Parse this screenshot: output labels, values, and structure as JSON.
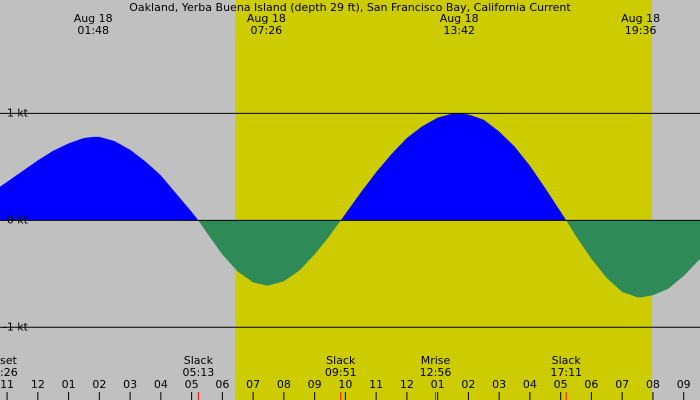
{
  "chart_data": {
    "type": "area",
    "title": "Oakland, Yerba Buena Island (depth 29 ft), San Francisco Bay, California Current",
    "x": [
      -1.25,
      -1,
      -0.5,
      0,
      0.5,
      1,
      1.5,
      1.8,
      2,
      2.5,
      3,
      3.5,
      4,
      4.5,
      5,
      5.22,
      5.5,
      6,
      6.5,
      7,
      7.43,
      7.5,
      8,
      8.5,
      9,
      9.5,
      9.85,
      10,
      10.5,
      11,
      11.5,
      12,
      12.5,
      13,
      13.5,
      13.7,
      14,
      14.5,
      15,
      15.5,
      16,
      16.5,
      17,
      17.18,
      17.5,
      18,
      18.5,
      19,
      19.5,
      19.6,
      20,
      20.5,
      21,
      21.5,
      21.53
    ],
    "values": [
      0.31,
      0.36,
      0.46,
      0.56,
      0.65,
      0.72,
      0.77,
      0.78,
      0.78,
      0.74,
      0.66,
      0.55,
      0.42,
      0.25,
      0.08,
      0,
      -0.12,
      -0.32,
      -0.48,
      -0.58,
      -0.61,
      -0.61,
      -0.57,
      -0.47,
      -0.32,
      -0.14,
      0,
      0.06,
      0.26,
      0.45,
      0.62,
      0.77,
      0.88,
      0.96,
      1.0,
      1.0,
      0.99,
      0.94,
      0.83,
      0.69,
      0.51,
      0.3,
      0.08,
      0,
      -0.15,
      -0.36,
      -0.54,
      -0.67,
      -0.72,
      -0.72,
      -0.7,
      -0.64,
      -0.52,
      -0.37,
      -0.36
    ],
    "positive_color": "#0000ff",
    "negative_color": "#2e8b57",
    "background_color": "#c0c0c0",
    "daylight_color": "#cccc00",
    "daylight": [
      6.43,
      19.97
    ],
    "xlim": [
      -1.23,
      21.53
    ],
    "ylim": [
      -1.68,
      2.06
    ],
    "xticks": [
      {
        "value": -1,
        "label": "11"
      },
      {
        "value": 0,
        "label": "12"
      },
      {
        "value": 1,
        "label": "01"
      },
      {
        "value": 2,
        "label": "02"
      },
      {
        "value": 3,
        "label": "03"
      },
      {
        "value": 4,
        "label": "04"
      },
      {
        "value": 5,
        "label": "05"
      },
      {
        "value": 6,
        "label": "06"
      },
      {
        "value": 7,
        "label": "07"
      },
      {
        "value": 8,
        "label": "08"
      },
      {
        "value": 9,
        "label": "09"
      },
      {
        "value": 10,
        "label": "10"
      },
      {
        "value": 11,
        "label": "11"
      },
      {
        "value": 12,
        "label": "12"
      },
      {
        "value": 13,
        "label": "01"
      },
      {
        "value": 14,
        "label": "02"
      },
      {
        "value": 15,
        "label": "03"
      },
      {
        "value": 16,
        "label": "04"
      },
      {
        "value": 17,
        "label": "05"
      },
      {
        "value": 18,
        "label": "06"
      },
      {
        "value": 19,
        "label": "07"
      },
      {
        "value": 20,
        "label": "08"
      },
      {
        "value": 21,
        "label": "09"
      }
    ],
    "yticks": [
      {
        "value": 1,
        "label": "1 kt"
      },
      {
        "value": 0,
        "label": "0 kt"
      },
      {
        "value": -1,
        "label": "-1 kt"
      }
    ],
    "top_events": [
      {
        "x": 1.8,
        "date": "Aug 18",
        "time": "01:48"
      },
      {
        "x": 7.43,
        "date": "Aug 18",
        "time": "07:26"
      },
      {
        "x": 13.7,
        "date": "Aug 18",
        "time": "13:42"
      },
      {
        "x": 19.6,
        "date": "Aug 18",
        "time": "19:36"
      }
    ],
    "bottom_events": [
      {
        "x": -1.23,
        "label": "set",
        "time": ":26"
      },
      {
        "x": 5.22,
        "label": "Slack",
        "time": "05:13"
      },
      {
        "x": 9.85,
        "label": "Slack",
        "time": "09:51"
      },
      {
        "x": 12.93,
        "label": "Mrise",
        "time": "12:56"
      },
      {
        "x": 17.18,
        "label": "Slack",
        "time": "17:11"
      }
    ]
  }
}
